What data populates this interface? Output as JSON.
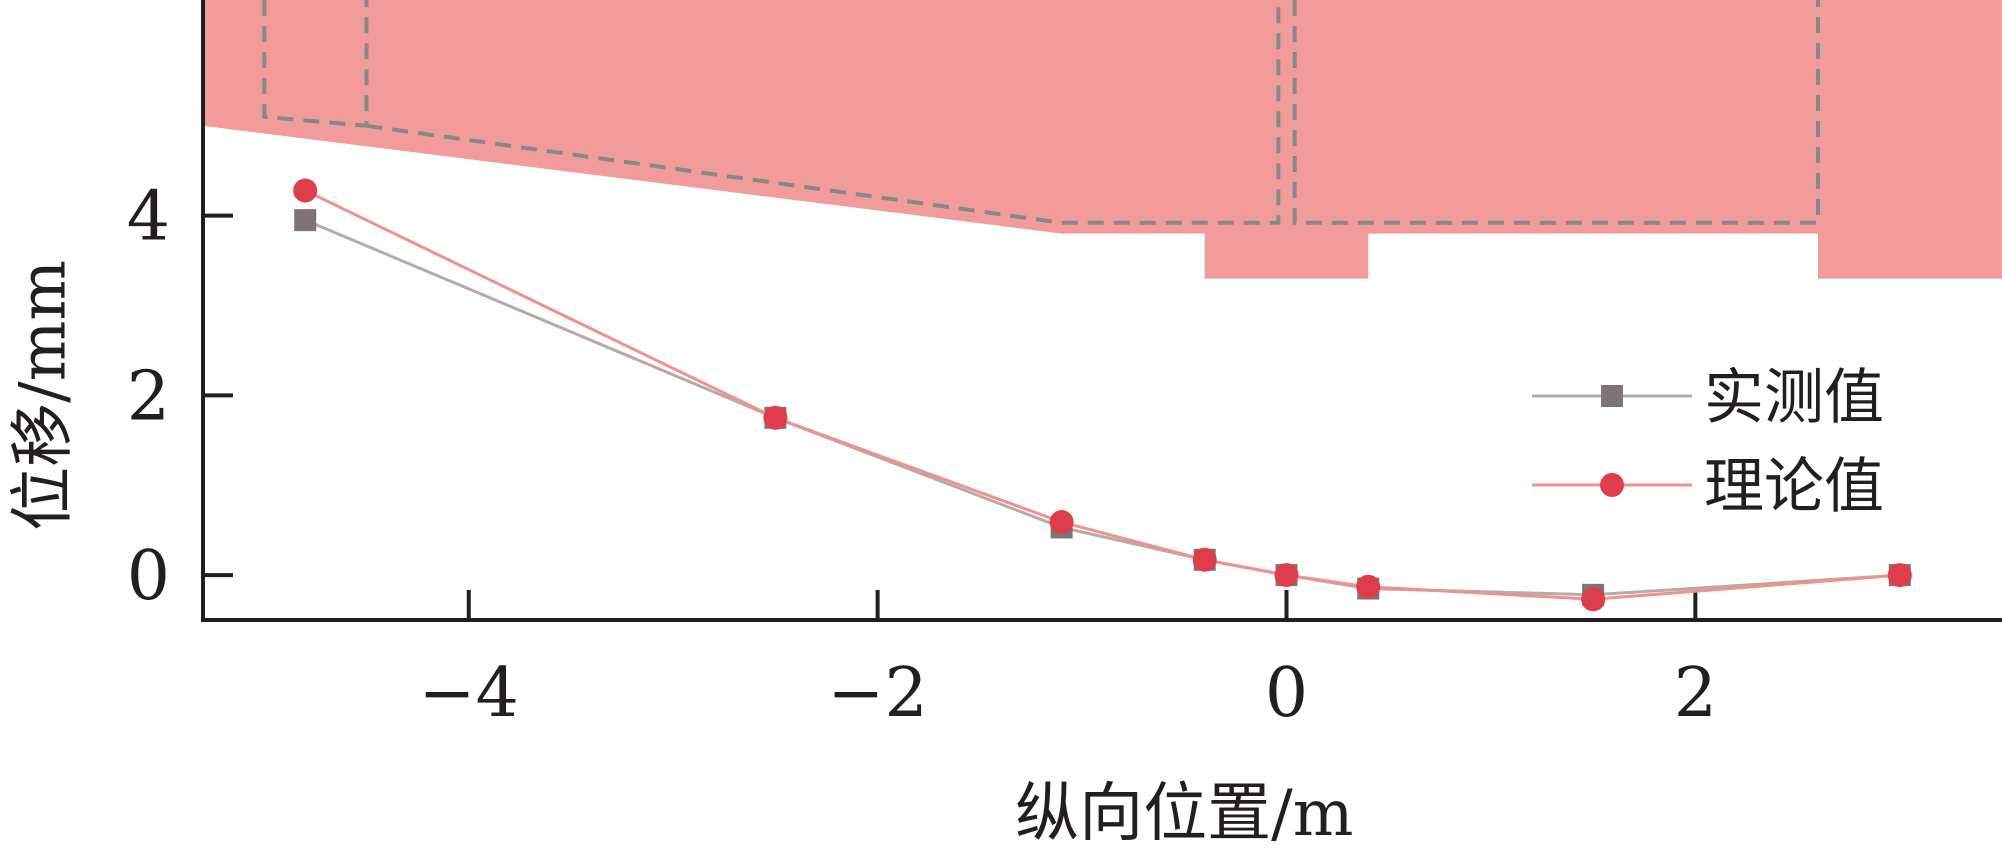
{
  "chart_data": {
    "type": "line",
    "xlabel": "纵向位置/m",
    "ylabel": "位移/mm",
    "xlim": [
      -5.3,
      3.5
    ],
    "ylim": [
      -0.5,
      6.4
    ],
    "xticks": [
      -4,
      -2,
      0,
      2
    ],
    "yticks": [
      0,
      2,
      4
    ],
    "xtick_labels": [
      "−4",
      "−2",
      "0",
      "2"
    ],
    "ytick_labels": [
      "0",
      "2",
      "4"
    ],
    "legend_position": "right",
    "grid": false,
    "series": [
      {
        "name": "实测值",
        "marker": "square",
        "color": "#7f7475",
        "line_color": "#b9a9a9",
        "x": [
          -4.8,
          -2.5,
          -1.1,
          -0.4,
          0.0,
          0.4,
          1.5,
          3.0
        ],
        "y": [
          3.95,
          1.75,
          0.53,
          0.17,
          0.0,
          -0.15,
          -0.22,
          0.0
        ]
      },
      {
        "name": "理论值",
        "marker": "circle",
        "color": "#de3d4b",
        "line_color": "#f0928c",
        "x": [
          -4.8,
          -2.5,
          -1.1,
          -0.4,
          0.0,
          0.4,
          1.5,
          3.0
        ],
        "y": [
          4.28,
          1.75,
          0.59,
          0.17,
          0.0,
          -0.13,
          -0.27,
          0.0
        ]
      }
    ],
    "background_structure": {
      "fill_color": "#f29b9b",
      "dash_color": "#888888",
      "outline": [
        [
          -5.3,
          6.4
        ],
        [
          3.5,
          6.4
        ],
        [
          3.5,
          3.3
        ],
        [
          2.6,
          3.3
        ],
        [
          2.6,
          3.8
        ],
        [
          0.4,
          3.8
        ],
        [
          0.4,
          3.3
        ],
        [
          -0.4,
          3.3
        ],
        [
          -0.4,
          3.8
        ],
        [
          -1.1,
          3.8
        ],
        [
          -5.3,
          5.0
        ]
      ],
      "dashed_paths": [
        [
          [
            -5.0,
            6.4
          ],
          [
            -5.0,
            5.1
          ],
          [
            -4.5,
            5.0
          ],
          [
            -4.5,
            6.4
          ]
        ],
        [
          [
            -4.5,
            5.0
          ],
          [
            -1.1,
            3.92
          ],
          [
            -0.04,
            3.92
          ],
          [
            -0.04,
            6.4
          ]
        ],
        [
          [
            0.04,
            6.4
          ],
          [
            0.04,
            3.92
          ],
          [
            2.6,
            3.92
          ],
          [
            2.6,
            6.4
          ]
        ]
      ]
    }
  }
}
